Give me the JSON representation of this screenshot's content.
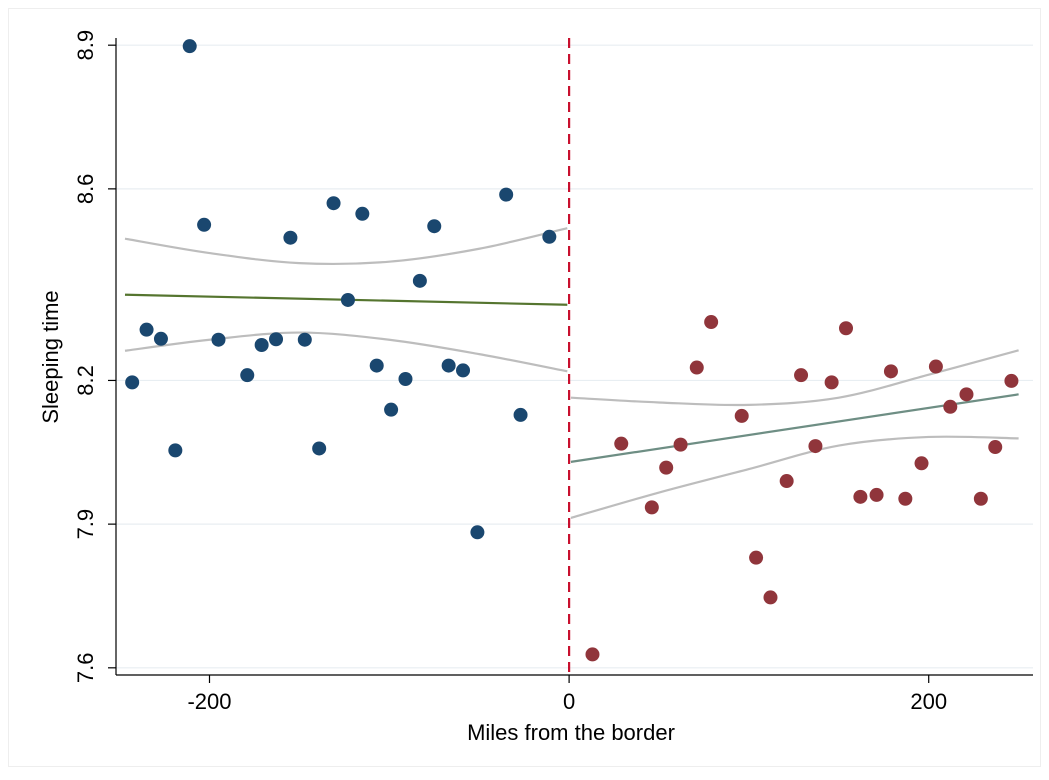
{
  "chart_data": {
    "type": "scatter",
    "title": "",
    "xlabel": "Miles from the border",
    "ylabel": "Sleeping time",
    "xlim": [
      -252,
      258
    ],
    "ylim": [
      7.585,
      8.915
    ],
    "x_ticks": [
      -200,
      0,
      200
    ],
    "x_tick_labels": [
      "-200",
      "0",
      "200"
    ],
    "y_ticks": [
      7.6,
      7.9,
      8.2,
      8.6,
      8.9
    ],
    "y_tick_labels": [
      "7.6",
      "7.9",
      "8.2",
      "8.6",
      "8.9"
    ],
    "grid": true,
    "legend": "none",
    "cutoff": {
      "x": 0,
      "color": "#c8102e",
      "style": "dashed"
    },
    "colors": {
      "left_points": "#1a476f",
      "right_points": "#90353b",
      "left_fit": "#55752f",
      "right_fit": "#6e8e84",
      "ci": "#bdbdbd",
      "grid": "#e8eef2"
    },
    "series": [
      {
        "side": "left",
        "points": [
          {
            "x": -243,
            "y": 8.196
          },
          {
            "x": -235,
            "y": 8.306
          },
          {
            "x": -227,
            "y": 8.287
          },
          {
            "x": -219,
            "y": 8.054
          },
          {
            "x": -211,
            "y": 8.898
          },
          {
            "x": -203,
            "y": 8.525
          },
          {
            "x": -195,
            "y": 8.285
          },
          {
            "x": -179,
            "y": 8.211
          },
          {
            "x": -171,
            "y": 8.274
          },
          {
            "x": -163,
            "y": 8.286
          },
          {
            "x": -155,
            "y": 8.498
          },
          {
            "x": -147,
            "y": 8.285
          },
          {
            "x": -139,
            "y": 8.058
          },
          {
            "x": -131,
            "y": 8.57
          },
          {
            "x": -123,
            "y": 8.368
          },
          {
            "x": -115,
            "y": 8.548
          },
          {
            "x": -107,
            "y": 8.231
          },
          {
            "x": -99,
            "y": 8.139
          },
          {
            "x": -91,
            "y": 8.203
          },
          {
            "x": -83,
            "y": 8.408
          },
          {
            "x": -75,
            "y": 8.522
          },
          {
            "x": -67,
            "y": 8.231
          },
          {
            "x": -59,
            "y": 8.221
          },
          {
            "x": -51,
            "y": 7.883
          },
          {
            "x": -35,
            "y": 8.588
          },
          {
            "x": -27,
            "y": 8.128
          },
          {
            "x": -11,
            "y": 8.5
          }
        ],
        "fit": [
          {
            "x": -247,
            "y": 8.379
          },
          {
            "x": -1,
            "y": 8.358
          }
        ],
        "ci_upper": [
          {
            "x": -247,
            "y": 8.496
          },
          {
            "x": -200,
            "y": 8.466
          },
          {
            "x": -150,
            "y": 8.445
          },
          {
            "x": -100,
            "y": 8.448
          },
          {
            "x": -50,
            "y": 8.475
          },
          {
            "x": -1,
            "y": 8.518
          }
        ],
        "ci_lower": [
          {
            "x": -247,
            "y": 8.262
          },
          {
            "x": -200,
            "y": 8.285
          },
          {
            "x": -150,
            "y": 8.3
          },
          {
            "x": -100,
            "y": 8.285
          },
          {
            "x": -50,
            "y": 8.255
          },
          {
            "x": -1,
            "y": 8.219
          }
        ]
      },
      {
        "side": "right",
        "points": [
          {
            "x": 13,
            "y": 7.628
          },
          {
            "x": 29,
            "y": 8.068
          },
          {
            "x": 46,
            "y": 7.935
          },
          {
            "x": 54,
            "y": 8.018
          },
          {
            "x": 62,
            "y": 8.066
          },
          {
            "x": 71,
            "y": 8.227
          },
          {
            "x": 79,
            "y": 8.322
          },
          {
            "x": 96,
            "y": 8.126
          },
          {
            "x": 104,
            "y": 7.83
          },
          {
            "x": 112,
            "y": 7.747
          },
          {
            "x": 121,
            "y": 7.99
          },
          {
            "x": 129,
            "y": 8.211
          },
          {
            "x": 137,
            "y": 8.063
          },
          {
            "x": 146,
            "y": 8.196
          },
          {
            "x": 154,
            "y": 8.309
          },
          {
            "x": 162,
            "y": 7.957
          },
          {
            "x": 171,
            "y": 7.961
          },
          {
            "x": 179,
            "y": 8.219
          },
          {
            "x": 187,
            "y": 7.953
          },
          {
            "x": 196,
            "y": 8.027
          },
          {
            "x": 204,
            "y": 8.229
          },
          {
            "x": 212,
            "y": 8.145
          },
          {
            "x": 221,
            "y": 8.171
          },
          {
            "x": 229,
            "y": 7.953
          },
          {
            "x": 237,
            "y": 8.061
          },
          {
            "x": 246,
            "y": 8.199
          }
        ],
        "fit": [
          {
            "x": 1,
            "y": 8.03
          },
          {
            "x": 250,
            "y": 8.171
          }
        ],
        "ci_upper": [
          {
            "x": 1,
            "y": 8.164
          },
          {
            "x": 50,
            "y": 8.154
          },
          {
            "x": 100,
            "y": 8.149
          },
          {
            "x": 150,
            "y": 8.164
          },
          {
            "x": 200,
            "y": 8.212
          },
          {
            "x": 250,
            "y": 8.263
          }
        ],
        "ci_lower": [
          {
            "x": 1,
            "y": 7.913
          },
          {
            "x": 50,
            "y": 7.966
          },
          {
            "x": 100,
            "y": 8.015
          },
          {
            "x": 150,
            "y": 8.064
          },
          {
            "x": 200,
            "y": 8.082
          },
          {
            "x": 250,
            "y": 8.079
          }
        ]
      }
    ]
  }
}
